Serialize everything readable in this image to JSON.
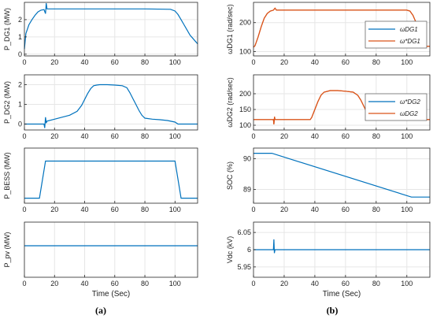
{
  "colors": {
    "blue": "#0072BD",
    "orange": "#D95319",
    "grid": "#e6e6e6",
    "axis": "#262626"
  },
  "chart_data": [
    {
      "id": "p_dg1",
      "type": "line",
      "ylabel": "P_DG1  (MW)",
      "xlim": [
        0,
        115
      ],
      "ylim": [
        -0.1,
        3.0
      ],
      "yticks": [
        0,
        1,
        2
      ],
      "ytick_labels": [
        "0",
        "1",
        "2"
      ],
      "xticks": [
        0,
        20,
        40,
        60,
        80,
        100
      ],
      "xtick_labels": [
        "0",
        "20",
        "40",
        "60",
        "80",
        "100"
      ],
      "series": [
        {
          "name": "",
          "color": "orange_none",
          "x": [
            0,
            1,
            3,
            5,
            7,
            9,
            11,
            13,
            14,
            14.5,
            15,
            16,
            20,
            40,
            60,
            80,
            97,
            100,
            102,
            104,
            106,
            108,
            110,
            113,
            115
          ],
          "y": [
            0.3,
            1.2,
            1.7,
            2.0,
            2.25,
            2.45,
            2.55,
            2.58,
            2.35,
            2.95,
            2.62,
            2.62,
            2.62,
            2.62,
            2.62,
            2.62,
            2.6,
            2.5,
            2.3,
            2.0,
            1.7,
            1.4,
            1.1,
            0.8,
            0.6
          ]
        }
      ]
    },
    {
      "id": "p_dg2",
      "type": "line",
      "ylabel": "P_DG2  (MW)",
      "xlim": [
        0,
        115
      ],
      "ylim": [
        -0.3,
        2.5
      ],
      "yticks": [
        0,
        1,
        2
      ],
      "ytick_labels": [
        "0",
        "1",
        "2"
      ],
      "xticks": [
        0,
        20,
        40,
        60,
        80,
        100
      ],
      "xtick_labels": [
        "0",
        "20",
        "40",
        "60",
        "80",
        "100"
      ],
      "series": [
        {
          "name": "",
          "x": [
            0,
            13,
            13.5,
            14,
            14.5,
            15,
            20,
            25,
            30,
            35,
            38,
            40,
            42,
            44,
            46,
            48,
            50,
            55,
            60,
            65,
            68,
            70,
            72,
            74,
            76,
            78,
            80,
            85,
            90,
            95,
            100,
            102,
            115
          ],
          "y": [
            0,
            0,
            -0.2,
            0.35,
            0.05,
            0.15,
            0.25,
            0.35,
            0.45,
            0.65,
            0.95,
            1.25,
            1.55,
            1.8,
            1.95,
            1.98,
            2.0,
            2.0,
            1.98,
            1.95,
            1.85,
            1.6,
            1.3,
            1.0,
            0.7,
            0.45,
            0.3,
            0.25,
            0.22,
            0.18,
            0.1,
            0,
            0
          ]
        }
      ]
    },
    {
      "id": "p_bess",
      "type": "line",
      "ylabel": "P_BESS  (MW)",
      "xlim": [
        0,
        115
      ],
      "ylim": [
        -0.05,
        0.5
      ],
      "yticks": [],
      "ytick_labels": [],
      "xticks": [
        0,
        20,
        40,
        60,
        80,
        100
      ],
      "xtick_labels": [
        "0",
        "20",
        "40",
        "60",
        "80",
        "100"
      ],
      "series": [
        {
          "name": "",
          "x": [
            0,
            10,
            14,
            100,
            104,
            115
          ],
          "y": [
            0,
            0,
            0.37,
            0.37,
            0,
            0
          ]
        }
      ]
    },
    {
      "id": "p_pv",
      "type": "line",
      "ylabel": "P_pv  (MW)",
      "xlim": [
        0,
        115
      ],
      "ylim": [
        0.2,
        0.55
      ],
      "yticks": [],
      "ytick_labels": [],
      "xticks": [
        0,
        20,
        40,
        60,
        80,
        100
      ],
      "xtick_labels": [
        "0",
        "20",
        "40",
        "60",
        "80",
        "100"
      ],
      "xlabel": "Time (Sec)",
      "series": [
        {
          "name": "",
          "x": [
            0,
            115
          ],
          "y": [
            0.4,
            0.4
          ]
        }
      ]
    },
    {
      "id": "w_dg1",
      "type": "line",
      "ylabel": "ωDG1 (rad/sec)",
      "xlim": [
        0,
        115
      ],
      "ylim": [
        85,
        270
      ],
      "yticks": [
        100,
        200
      ],
      "ytick_labels": [
        "100",
        "200"
      ],
      "xticks": [
        0,
        20,
        40,
        60,
        80,
        100
      ],
      "xtick_labels": [
        "0",
        "20",
        "40",
        "60",
        "80",
        "100"
      ],
      "legend": [
        "ωDG1",
        "ω*DG1"
      ],
      "series": [
        {
          "name": "ωDG1",
          "x": [
            0,
            1,
            3,
            5,
            7,
            9,
            11,
            13,
            14,
            15,
            20,
            100,
            102,
            104,
            106,
            108,
            110,
            113,
            115
          ],
          "y": [
            115,
            120,
            150,
            185,
            215,
            232,
            240,
            243,
            250,
            243,
            243,
            243,
            240,
            225,
            200,
            170,
            140,
            118,
            118
          ]
        },
        {
          "name": "ω*DG1",
          "x": [
            0,
            1,
            3,
            5,
            7,
            9,
            11,
            13,
            14,
            15,
            20,
            100,
            102,
            104,
            106,
            108,
            110,
            113,
            115
          ],
          "y": [
            115,
            120,
            150,
            185,
            215,
            232,
            240,
            243,
            250,
            243,
            243,
            243,
            240,
            225,
            200,
            170,
            140,
            118,
            118
          ]
        }
      ]
    },
    {
      "id": "w_dg2",
      "type": "line",
      "ylabel": "ωDG2 (rad/sec)",
      "xlim": [
        0,
        115
      ],
      "ylim": [
        85,
        260
      ],
      "yticks": [
        100,
        150,
        200
      ],
      "ytick_labels": [
        "100",
        "150",
        "200"
      ],
      "xticks": [
        0,
        20,
        40,
        60,
        80,
        100
      ],
      "xtick_labels": [
        "0",
        "20",
        "40",
        "60",
        "80",
        "100"
      ],
      "legend": [
        "ω*DG2",
        "ωDG2"
      ],
      "series": [
        {
          "name": "ω*DG2",
          "x": [
            0,
            13,
            13.3,
            13.7,
            14,
            37,
            38,
            40,
            42,
            44,
            46,
            50,
            55,
            60,
            65,
            68,
            70,
            72,
            74,
            76,
            78,
            80,
            100,
            115
          ],
          "y": [
            118,
            118,
            103,
            127,
            118,
            118,
            125,
            150,
            175,
            195,
            205,
            210,
            210,
            208,
            205,
            195,
            180,
            160,
            140,
            125,
            118,
            118,
            118,
            118
          ]
        },
        {
          "name": "ωDG2",
          "x": [
            0,
            13,
            13.3,
            13.7,
            14,
            37,
            38,
            40,
            42,
            44,
            46,
            50,
            55,
            60,
            65,
            68,
            70,
            72,
            74,
            76,
            78,
            80,
            100,
            115
          ],
          "y": [
            118,
            118,
            103,
            127,
            118,
            118,
            125,
            150,
            175,
            195,
            205,
            210,
            210,
            208,
            205,
            195,
            180,
            160,
            140,
            125,
            118,
            118,
            118,
            118
          ]
        }
      ]
    },
    {
      "id": "soc",
      "type": "line",
      "ylabel": "SOC (%)",
      "xlim": [
        0,
        115
      ],
      "ylim": [
        88.55,
        90.35
      ],
      "yticks": [
        89,
        90
      ],
      "ytick_labels": [
        "89",
        "90"
      ],
      "xticks": [
        0,
        20,
        40,
        60,
        80,
        100
      ],
      "xtick_labels": [
        "0",
        "20",
        "40",
        "60",
        "80",
        "100"
      ],
      "series": [
        {
          "name": "",
          "x": [
            0,
            12,
            103,
            115
          ],
          "y": [
            90.18,
            90.18,
            88.75,
            88.75
          ]
        }
      ]
    },
    {
      "id": "v_dc",
      "type": "line",
      "ylabel": "Vdc (kV)",
      "xlim": [
        0,
        115
      ],
      "ylim": [
        5.92,
        6.08
      ],
      "yticks": [
        5.95,
        6,
        6.05
      ],
      "ytick_labels": [
        "5.95",
        "6",
        "6.05"
      ],
      "xticks": [
        0,
        20,
        40,
        60,
        80,
        100
      ],
      "xtick_labels": [
        "0",
        "20",
        "40",
        "60",
        "80",
        "100"
      ],
      "xlabel": "Time (Sec)",
      "series": [
        {
          "name": "",
          "x": [
            0,
            13,
            13.3,
            13.6,
            14,
            20,
            60,
            100,
            115
          ],
          "y": [
            6.0,
            6.0,
            6.03,
            5.99,
            6.0,
            6.0,
            6.0,
            6.0,
            6.0
          ]
        }
      ]
    }
  ],
  "captions": {
    "left": "(a)",
    "right": "(b)"
  }
}
